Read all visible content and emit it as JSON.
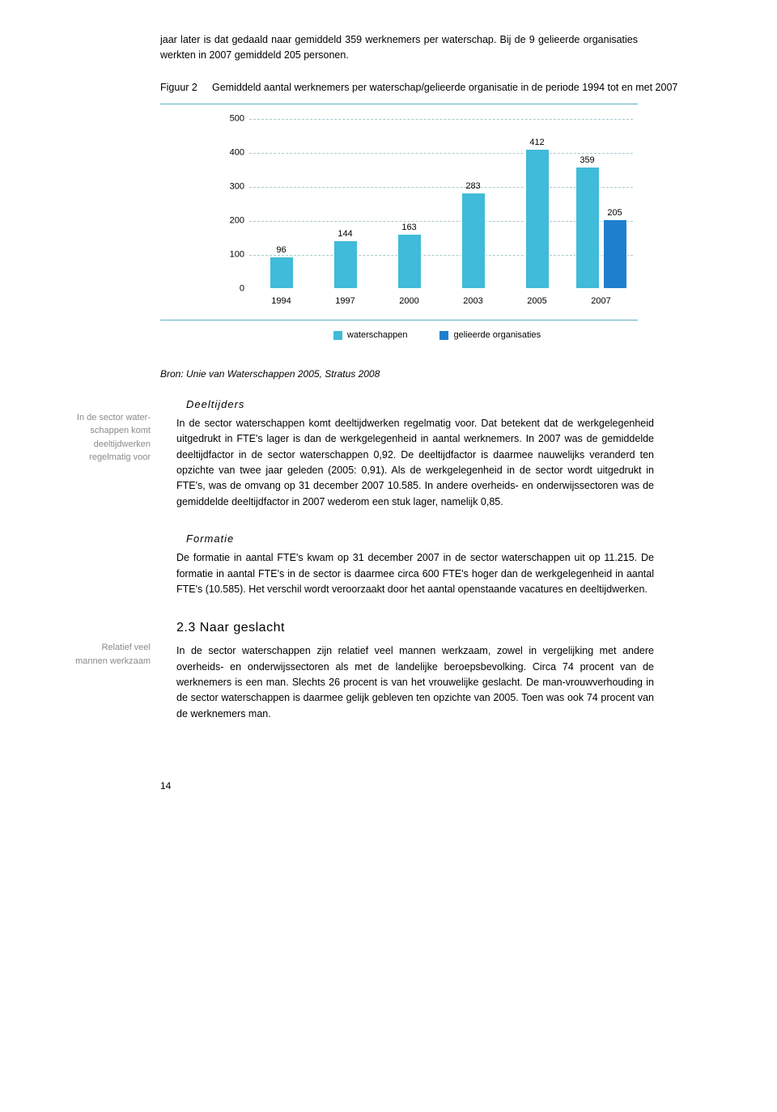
{
  "intro": "jaar later is dat gedaald naar gemiddeld 359 werknemers per waterschap. Bij de 9 gelieerde organisaties werkten in 2007 gemiddeld 205 personen.",
  "figure": {
    "label": "Figuur 2",
    "title": "Gemiddeld aantal werknemers per waterschap/gelieerde organisatie in de periode 1994 tot en met 2007",
    "bron": "Bron: Unie van Waterschappen 2005, Stratus 2008"
  },
  "chart": {
    "type": "bar",
    "ymax": 500,
    "ytick_step": 100,
    "yticks": [
      "0",
      "100",
      "200",
      "300",
      "400",
      "500"
    ],
    "grid_color": "#aac6cc",
    "categories": [
      "1994",
      "1997",
      "2000",
      "2003",
      "2005",
      "2007"
    ],
    "series": [
      {
        "name": "waterschappen",
        "color": "#40bbd9",
        "values": [
          96,
          144,
          163,
          283,
          412,
          359
        ]
      },
      {
        "name": "gelieerde organisaties",
        "color": "#1f7fcf",
        "values": [
          null,
          null,
          null,
          null,
          null,
          205
        ]
      }
    ],
    "legend": [
      {
        "label": "waterschappen",
        "color": "#40bbd9"
      },
      {
        "label": "gelieerde organisaties",
        "color": "#1f7fcf"
      }
    ]
  },
  "sections": {
    "deeltijders": {
      "heading": "Deeltijders",
      "margin_note": "In de sector water-\nschappen komt deeltijdwerken regelmatig voor",
      "body": "In de sector waterschappen komt deeltijdwerken regelmatig voor. Dat betekent dat de werkgelegenheid uitgedrukt in FTE's lager is dan de werkgelegenheid in aantal werknemers. In 2007 was de gemiddelde deeltijdfactor in de sector waterschappen 0,92. De deeltijdfactor is daarmee nauwelijks veranderd ten opzichte van twee jaar geleden (2005: 0,91). Als de werkgelegenheid in de sector wordt uitgedrukt in FTE's, was de omvang op 31 december 2007 10.585. In andere overheids- en onderwijssectoren was de gemiddelde deeltijdfactor in 2007 wederom een stuk lager, namelijk 0,85."
    },
    "formatie": {
      "heading": "Formatie",
      "body": "De formatie in aantal FTE's kwam op 31 december 2007 in de sector waterschappen uit op 11.215. De formatie in aantal FTE's in de sector is daarmee circa 600 FTE's hoger dan de werkgelegenheid in aantal FTE's (10.585). Het verschil wordt veroorzaakt door het aantal openstaande vacatures en deeltijdwerken."
    },
    "geslacht": {
      "number_title": "2.3  Naar geslacht",
      "margin_note": "Relatief veel mannen werkzaam",
      "body": "In de sector waterschappen zijn relatief veel mannen werkzaam, zowel in vergelijking met andere overheids- en onderwijssectoren als met de landelijke beroepsbevolking. Circa 74 procent van de werknemers is een man. Slechts 26 procent is van het vrouwelijke geslacht. De man-vrouwverhouding in de sector waterschappen is daarmee gelijk gebleven ten opzichte van 2005. Toen was ook 74 procent van de werknemers man."
    }
  },
  "page_number": "14"
}
